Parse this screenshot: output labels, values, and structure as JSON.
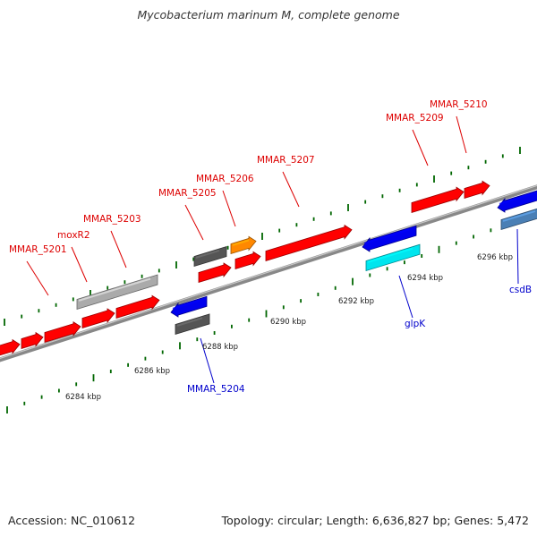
{
  "title": "Mycobacterium marinum M, complete genome",
  "footer": {
    "accession": "Accession: NC_010612",
    "summary": "Topology: circular; Length: 6,636,827 bp; Genes: 5,472"
  },
  "colors": {
    "forward_gene": "#ff0000",
    "other_gene": "#ff8800",
    "pseudo_gene": "#aaaaaa",
    "dark_gene": "#555555",
    "reverse_gene": "#0000ee",
    "reverse_cyan": "#00e5ee",
    "reverse_steel": "#4a7fb5",
    "label_forward": "#dd0000",
    "label_reverse": "#0000cc",
    "tick": "#006600",
    "backbone": "#888888"
  },
  "scale_labels": [
    "6284 kbp",
    "6286 kbp",
    "6288 kbp",
    "6290 kbp",
    "6292 kbp",
    "6294 kbp",
    "6296 kbp"
  ],
  "gene_labels_forward": [
    "MMAR_5201",
    "moxR2",
    "MMAR_5203",
    "MMAR_5205",
    "MMAR_5206",
    "MMAR_5207",
    "MMAR_5209",
    "MMAR_5210"
  ],
  "gene_labels_reverse": [
    "MMAR_5204",
    "glpK",
    "csdB"
  ]
}
